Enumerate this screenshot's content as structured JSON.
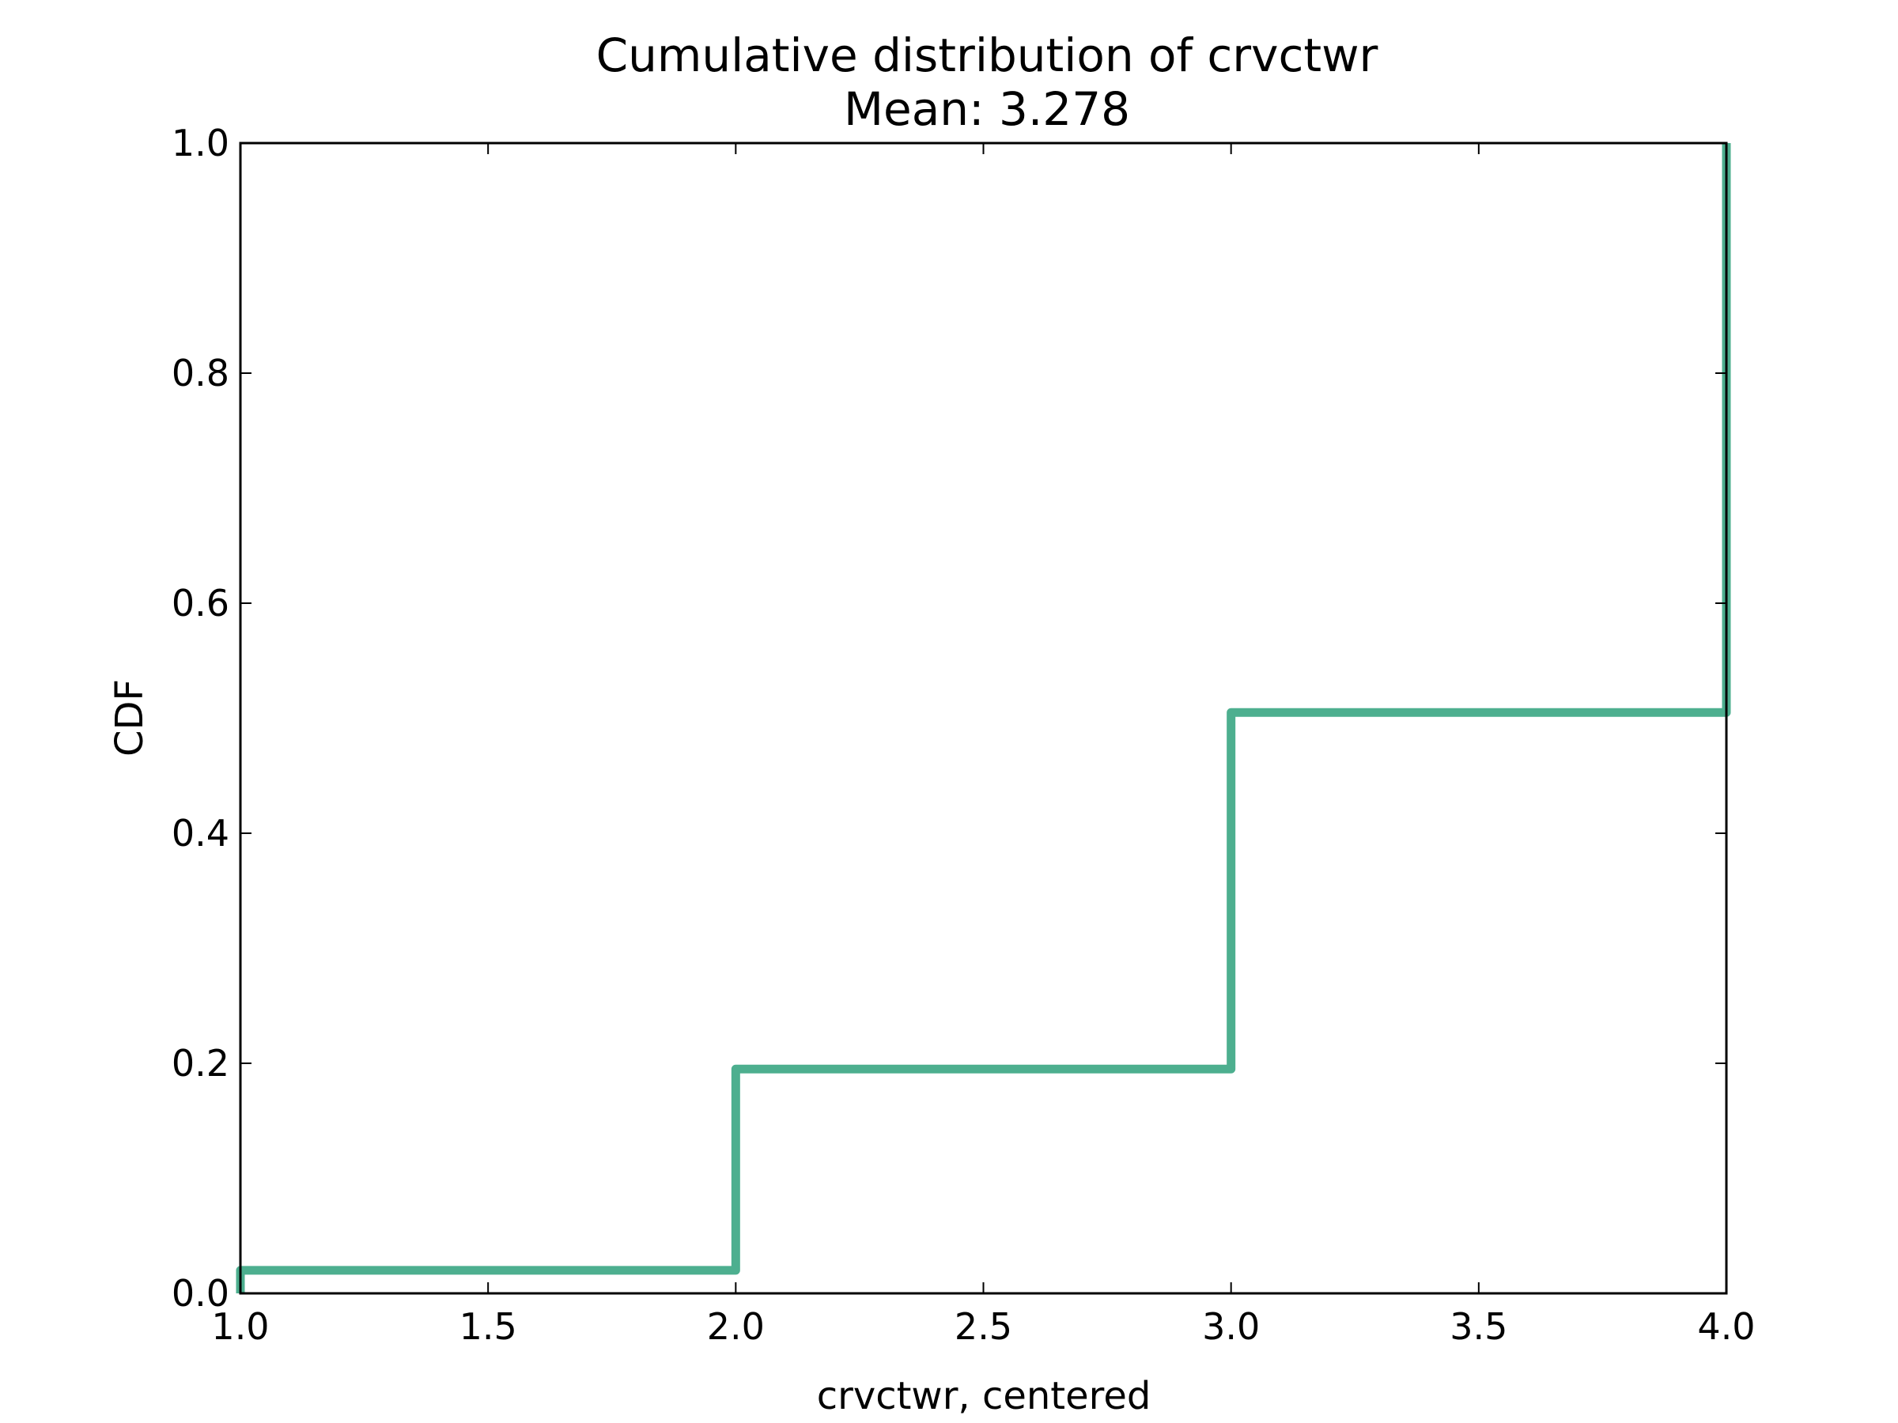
{
  "chart_data": {
    "type": "line",
    "title": "Cumulative distribution of crvctwr",
    "subtitle": "Mean: 3.278",
    "xlabel": "crvctwr, centered",
    "ylabel": "CDF",
    "xlim": [
      1.0,
      4.0
    ],
    "ylim": [
      0.0,
      1.0
    ],
    "xticks": [
      "1.0",
      "1.5",
      "2.0",
      "2.5",
      "3.0",
      "3.5",
      "4.0"
    ],
    "yticks": [
      "0.0",
      "0.2",
      "0.4",
      "0.6",
      "0.8",
      "1.0"
    ],
    "grid": false,
    "legend": "none",
    "line_color": "#4daf8f",
    "series": [
      {
        "step": "post",
        "x": [
          1.0,
          2.0,
          3.0,
          4.0
        ],
        "y": [
          0.02,
          0.195,
          0.505,
          1.0
        ]
      }
    ]
  }
}
